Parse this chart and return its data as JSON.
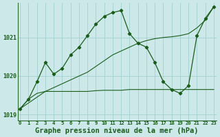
{
  "background_color": "#cce8e8",
  "plot_bg_color": "#cce8e8",
  "grid_color": "#99cccc",
  "line_color": "#1a5c1a",
  "xlabel": "Graphe pression niveau de la mer (hPa)",
  "xlabel_fontsize": 7.5,
  "ylim": [
    1018.85,
    1021.9
  ],
  "xlim": [
    -0.3,
    23.3
  ],
  "yticks": [
    1019,
    1020,
    1021
  ],
  "xticks": [
    0,
    1,
    2,
    3,
    4,
    5,
    6,
    7,
    8,
    9,
    10,
    11,
    12,
    13,
    14,
    15,
    16,
    17,
    18,
    19,
    20,
    21,
    22,
    23
  ],
  "series_zigzag": [
    1019.15,
    1019.4,
    1019.85,
    1020.35,
    1020.05,
    1020.2,
    1020.55,
    1020.75,
    1021.05,
    1021.35,
    1021.55,
    1021.65,
    1021.7,
    1021.1,
    1020.85,
    1020.75,
    1020.35,
    1019.85,
    1019.65,
    1019.55,
    1019.75,
    1021.05,
    1021.5,
    1021.8
  ],
  "series_diagonal": [
    1019.15,
    1019.3,
    1019.45,
    1019.6,
    1019.7,
    1019.8,
    1019.9,
    1020.0,
    1020.1,
    1020.25,
    1020.4,
    1020.55,
    1020.65,
    1020.75,
    1020.85,
    1020.92,
    1020.97,
    1021.0,
    1021.02,
    1021.05,
    1021.1,
    1021.25,
    1021.45,
    1021.8
  ],
  "series_flat": [
    1019.15,
    1019.4,
    1019.55,
    1019.6,
    1019.6,
    1019.6,
    1019.6,
    1019.6,
    1019.6,
    1019.62,
    1019.63,
    1019.63,
    1019.63,
    1019.65,
    1019.65,
    1019.65,
    1019.65,
    1019.65,
    1019.65,
    1019.65,
    1019.65,
    1019.65,
    1019.65,
    1019.65
  ]
}
